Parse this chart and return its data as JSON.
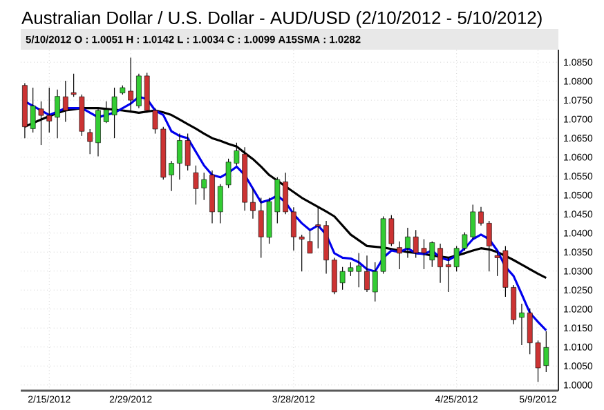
{
  "chart_data": {
    "type": "candlestick",
    "title": "Australian Dollar / U.S. Dollar - AUD/USD (2/10/2012 - 5/10/2012)",
    "subtitle": "5/10/2012 O : 1.0051 H : 1.0142 L : 1.0034 C : 1.0099 A15SMA : 1.0282",
    "categories": [
      null,
      null,
      null,
      "2/15/2012",
      null,
      null,
      null,
      null,
      null,
      null,
      null,
      null,
      null,
      "2/29/2012",
      null,
      null,
      null,
      null,
      null,
      null,
      null,
      null,
      null,
      null,
      null,
      null,
      null,
      null,
      null,
      null,
      null,
      null,
      null,
      "3/28/2012",
      null,
      null,
      null,
      null,
      null,
      null,
      null,
      null,
      null,
      null,
      null,
      null,
      null,
      null,
      null,
      null,
      null,
      null,
      null,
      "4/25/2012",
      null,
      null,
      null,
      null,
      null,
      null,
      null,
      null,
      null,
      "5/9/2012",
      null
    ],
    "ohlc": [
      [
        1.0789,
        1.0795,
        1.065,
        1.068
      ],
      [
        1.0675,
        1.0783,
        1.0665,
        1.0735
      ],
      [
        1.0727,
        1.0747,
        1.0632,
        1.071
      ],
      [
        1.071,
        1.0783,
        1.0665,
        1.0695
      ],
      [
        1.0705,
        1.0778,
        1.065,
        1.076
      ],
      [
        1.0759,
        1.0801,
        1.0693,
        1.0723
      ],
      [
        1.077,
        1.082,
        1.0759,
        1.0765
      ],
      [
        1.0759,
        1.0765,
        1.0656,
        1.0668
      ],
      [
        1.0665,
        1.0674,
        1.0608,
        1.0641
      ],
      [
        1.0638,
        1.0729,
        1.0602,
        1.0723
      ],
      [
        1.0693,
        1.0747,
        1.069,
        1.0725
      ],
      [
        1.0711,
        1.0783,
        1.065,
        1.0759
      ],
      [
        1.0769,
        1.0789,
        1.0765,
        1.0783
      ],
      [
        1.0774,
        1.0862,
        1.0723,
        1.075
      ],
      [
        1.0735,
        1.082,
        1.0729,
        1.0814
      ],
      [
        1.0814,
        1.0822,
        1.0717,
        1.0723
      ],
      [
        1.0723,
        1.0729,
        1.0662,
        1.0674
      ],
      [
        1.0674,
        1.068,
        1.0541,
        1.0547
      ],
      [
        1.0553,
        1.059,
        1.0511,
        1.0584
      ],
      [
        1.0584,
        1.0662,
        1.0541,
        1.0644
      ],
      [
        1.0644,
        1.0662,
        1.0565,
        1.0578
      ],
      [
        1.0559,
        1.0578,
        1.0475,
        1.0517
      ],
      [
        1.0519,
        1.0559,
        1.0487,
        1.0541
      ],
      [
        1.0553,
        1.0565,
        1.0426,
        1.0456
      ],
      [
        1.0456,
        1.0529,
        1.0426,
        1.0523
      ],
      [
        1.0527,
        1.0596,
        1.0519,
        1.0587
      ],
      [
        1.0584,
        1.0638,
        1.0578,
        1.0617
      ],
      [
        1.0608,
        1.0626,
        1.0459,
        1.0481
      ],
      [
        1.0481,
        1.0517,
        1.0438,
        1.0459
      ],
      [
        1.0459,
        1.0493,
        1.0335,
        1.039
      ],
      [
        1.0389,
        1.0493,
        1.0372,
        1.0483
      ],
      [
        1.0456,
        1.0547,
        1.0426,
        1.0541
      ],
      [
        1.0535,
        1.0559,
        1.045,
        1.0456
      ],
      [
        1.0456,
        1.0468,
        1.0354,
        1.039
      ],
      [
        1.039,
        1.0396,
        1.0299,
        1.0384
      ],
      [
        1.0378,
        1.0408,
        1.0347,
        1.0347
      ],
      [
        1.0422,
        1.0468,
        1.036,
        1.0418
      ],
      [
        1.042,
        1.0432,
        1.0293,
        1.0329
      ],
      [
        1.0329,
        1.0335,
        1.0239,
        1.0245
      ],
      [
        1.0269,
        1.0311,
        1.0251,
        1.0299
      ],
      [
        1.0299,
        1.0323,
        1.0287,
        1.0309
      ],
      [
        1.0299,
        1.0347,
        1.0257,
        1.0314
      ],
      [
        1.0299,
        1.0341,
        1.0245,
        1.0251
      ],
      [
        1.0245,
        1.0323,
        1.022,
        1.0299
      ],
      [
        1.0299,
        1.0444,
        1.0293,
        1.0438
      ],
      [
        1.0438,
        1.0447,
        1.0366,
        1.0372
      ],
      [
        1.0362,
        1.0378,
        1.0305,
        1.0347
      ],
      [
        1.036,
        1.0414,
        1.0335,
        1.039
      ],
      [
        1.039,
        1.0408,
        1.0335,
        1.0348
      ],
      [
        1.036,
        1.0384,
        1.0305,
        1.0348
      ],
      [
        1.0329,
        1.0378,
        1.0311,
        1.0375
      ],
      [
        1.036,
        1.0372,
        1.0269,
        1.0311
      ],
      [
        1.0317,
        1.0335,
        1.0245,
        1.0311
      ],
      [
        1.0311,
        1.0366,
        1.0299,
        1.036
      ],
      [
        1.036,
        1.0402,
        1.0354,
        1.0396
      ],
      [
        1.039,
        1.0475,
        1.0384,
        1.0456
      ],
      [
        1.0456,
        1.0469,
        1.042,
        1.0426
      ],
      [
        1.0426,
        1.0432,
        1.0299,
        1.0366
      ],
      [
        1.0341,
        1.0354,
        1.0287,
        1.0335
      ],
      [
        1.0354,
        1.0366,
        1.0232,
        1.0257
      ],
      [
        1.0257,
        1.0263,
        1.016,
        1.0172
      ],
      [
        1.0178,
        1.0214,
        1.0105,
        1.019
      ],
      [
        1.019,
        1.0202,
        1.0081,
        1.0111
      ],
      [
        1.0111,
        1.0117,
        1.0008,
        1.0045
      ],
      [
        1.0051,
        1.0142,
        1.0034,
        1.0099
      ]
    ],
    "colors": [
      "#cc3333",
      "#33cc33",
      "#cc3333",
      "#cc3333",
      "#33cc33",
      "#cc3333",
      "#cc3333",
      "#cc3333",
      "#cc3333",
      "#33cc33",
      "#33cc33",
      "#33cc33",
      "#33cc33",
      "#cc3333",
      "#33cc33",
      "#cc3333",
      "#cc3333",
      "#cc3333",
      "#33cc33",
      "#33cc33",
      "#cc3333",
      "#cc3333",
      "#33cc33",
      "#cc3333",
      "#33cc33",
      "#33cc33",
      "#33cc33",
      "#cc3333",
      "#cc3333",
      "#cc3333",
      "#33cc33",
      "#33cc33",
      "#cc3333",
      "#cc3333",
      "#cc3333",
      "#cc3333",
      "#cc3333",
      "#cc3333",
      "#cc3333",
      "#33cc33",
      "#33cc33",
      "#33cc33",
      "#cc3333",
      "#33cc33",
      "#33cc33",
      "#cc3333",
      "#cc3333",
      "#33cc33",
      "#cc3333",
      "#cc3333",
      "#33cc33",
      "#cc3333",
      "#cc3333",
      "#33cc33",
      "#33cc33",
      "#33cc33",
      "#cc3333",
      "#cc3333",
      "#cc3333",
      "#cc3333",
      "#cc3333",
      "#33cc33",
      "#cc3333",
      "#cc3333",
      "#33cc33"
    ],
    "series": [
      {
        "type": "line",
        "color": "#000000",
        "values": [
          1.068,
          1.069,
          1.0699,
          1.0708,
          1.0716,
          1.0723,
          1.0726,
          1.0729,
          1.0729,
          1.0729,
          1.0727,
          1.0725,
          1.0723,
          1.072,
          1.0717,
          1.072,
          1.0723,
          1.0718,
          1.0711,
          1.0699,
          1.0687,
          1.0675,
          1.0662,
          1.065,
          1.0643,
          1.0635,
          1.0628,
          1.0611,
          1.0595,
          1.0575,
          1.0553,
          1.0538,
          1.0523,
          1.0508,
          1.0493,
          1.0481,
          1.0469,
          1.0457,
          1.0444,
          1.042,
          1.0396,
          1.0381,
          1.0366,
          1.0364,
          1.0362,
          1.0358,
          1.0354,
          1.035,
          1.0348,
          1.0345,
          1.0341,
          1.0338,
          1.0335,
          1.0341,
          1.0347,
          1.0354,
          1.036,
          1.0357,
          1.035,
          1.034,
          1.0329,
          1.0317,
          1.0305,
          1.0293,
          1.0282
        ]
      },
      {
        "type": "line",
        "color": "#0000ee",
        "values": [
          1.0747,
          1.0735,
          1.0723,
          1.0711,
          1.072,
          1.0729,
          1.0729,
          1.0729,
          1.0717,
          1.0705,
          1.0711,
          1.0717,
          1.0729,
          1.0741,
          1.0759,
          1.0753,
          1.0723,
          1.0711,
          1.0668,
          1.0656,
          1.065,
          1.0614,
          1.0578,
          1.0553,
          1.0547,
          1.0559,
          1.0575,
          1.0553,
          1.0517,
          1.0481,
          1.0487,
          1.0499,
          1.0481,
          1.045,
          1.0426,
          1.0408,
          1.042,
          1.0396,
          1.0347,
          1.0335,
          1.0333,
          1.0323,
          1.0305,
          1.0299,
          1.0335,
          1.0354,
          1.035,
          1.036,
          1.0347,
          1.0345,
          1.0354,
          1.0335,
          1.0329,
          1.0341,
          1.036,
          1.0384,
          1.0396,
          1.0384,
          1.0354,
          1.0311,
          1.0287,
          1.0239,
          1.019,
          1.0166,
          1.0144
        ]
      }
    ],
    "ylim": [
      0.9985,
      1.0883
    ],
    "yticks": [
      {
        "value": 1.0,
        "label": "1.0000"
      },
      {
        "value": 1.005,
        "label": "1.0050"
      },
      {
        "value": 1.01,
        "label": "1.0100"
      },
      {
        "value": 1.015,
        "label": "1.0150"
      },
      {
        "value": 1.02,
        "label": "1.0200"
      },
      {
        "value": 1.025,
        "label": "1.0250"
      },
      {
        "value": 1.03,
        "label": "1.0300"
      },
      {
        "value": 1.035,
        "label": "1.0350"
      },
      {
        "value": 1.04,
        "label": "1.0400"
      },
      {
        "value": 1.045,
        "label": "1.0450"
      },
      {
        "value": 1.05,
        "label": "1.0500"
      },
      {
        "value": 1.055,
        "label": "1.0550"
      },
      {
        "value": 1.06,
        "label": "1.0600"
      },
      {
        "value": 1.065,
        "label": "1.0650"
      },
      {
        "value": 1.07,
        "label": "1.0700"
      },
      {
        "value": 1.075,
        "label": "1.0750"
      },
      {
        "value": 1.08,
        "label": "1.0800"
      },
      {
        "value": 1.085,
        "label": "1.0850"
      }
    ],
    "grid": true
  }
}
